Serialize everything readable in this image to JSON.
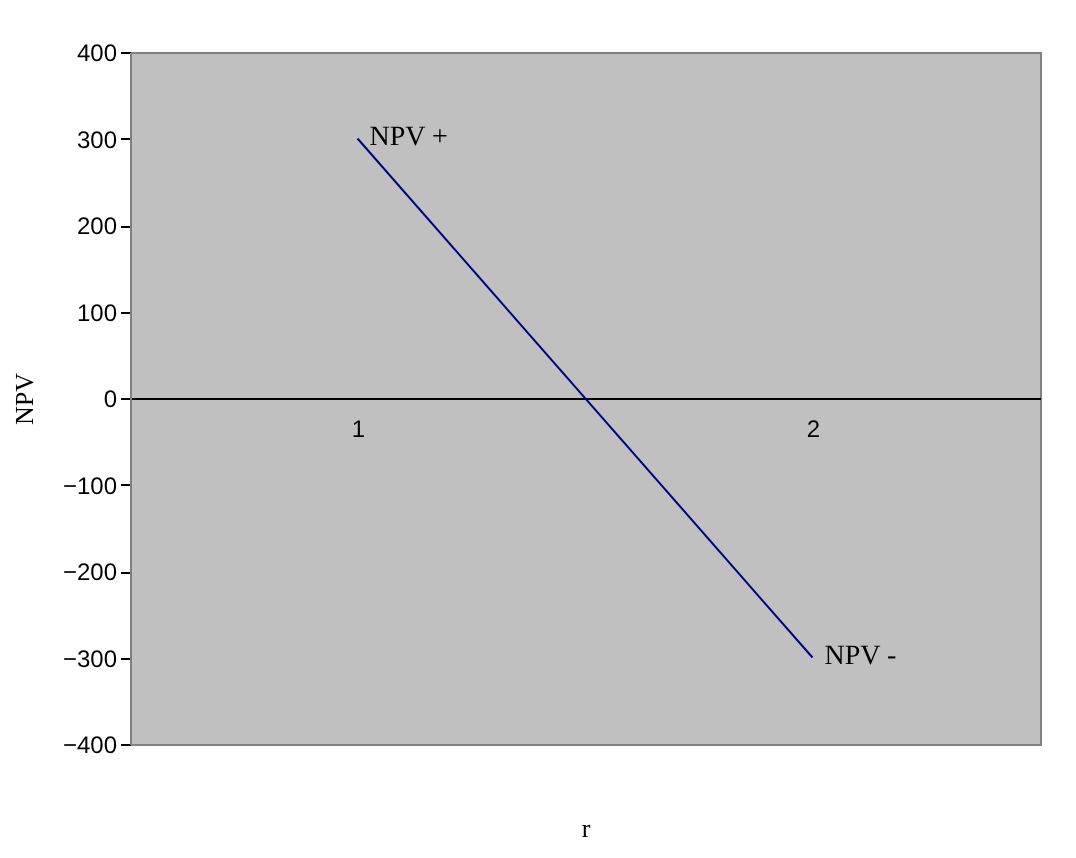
{
  "chart_data": {
    "type": "line",
    "categories": [
      "1",
      "2"
    ],
    "xlabel": "r",
    "ylabel": "NPV",
    "series": [
      {
        "color": "#000080",
        "values": [
          300,
          -300
        ]
      }
    ],
    "ylim": [
      -400,
      400
    ],
    "yticks": [
      -400,
      -300,
      -200,
      -100,
      0,
      100,
      200,
      300,
      400
    ],
    "grid": false,
    "marker": "none",
    "line_style": "solid",
    "annotations": [
      {
        "text": "NPV +",
        "x": "1",
        "y": 300
      },
      {
        "text": "NPV -",
        "x": "2",
        "y": -300
      }
    ]
  }
}
